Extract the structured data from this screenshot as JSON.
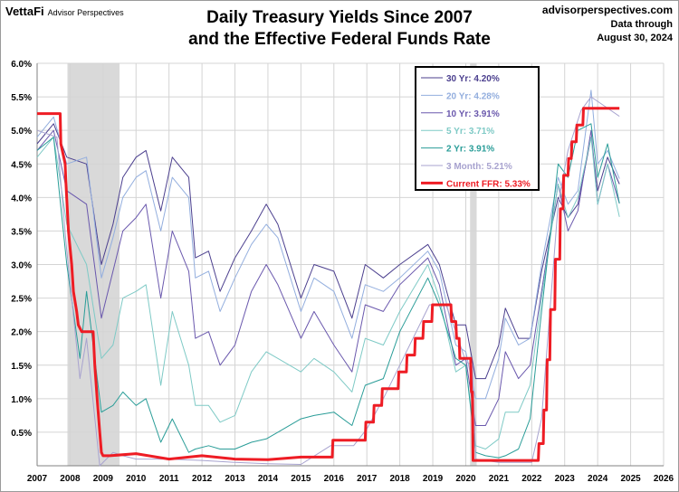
{
  "brand": {
    "logo": "VettaFi",
    "sub": "Advisor Perspectives"
  },
  "title_line1": "Daily Treasury Yields Since 2007",
  "title_line2": "and the Effective Federal Funds Rate",
  "source_line1": "advisorperspectives.com",
  "source_line2": "Data through",
  "source_line3": "August 30, 2024",
  "chart_data": {
    "type": "line",
    "xlim": [
      2007,
      2026
    ],
    "ylim": [
      0,
      6
    ],
    "x_ticks": [
      2007,
      2008,
      2009,
      2010,
      2011,
      2012,
      2013,
      2014,
      2015,
      2016,
      2017,
      2018,
      2019,
      2020,
      2021,
      2022,
      2023,
      2024,
      2025,
      2026
    ],
    "x_tick_labels": [
      "2007",
      "2008",
      "2009",
      "2010",
      "2011",
      "2012",
      "2013",
      "2014",
      "2015",
      "2016",
      "2017",
      "2018",
      "2019",
      "2020",
      "2021",
      "2022",
      "2023",
      "2024",
      "2025",
      "2026"
    ],
    "y_ticks": [
      0.5,
      1.0,
      1.5,
      2.0,
      2.5,
      3.0,
      3.5,
      4.0,
      4.5,
      5.0,
      5.5,
      6.0
    ],
    "y_tick_labels": [
      "0.5%",
      "1.0%",
      "1.5%",
      "2.0%",
      "2.5%",
      "3.0%",
      "3.5%",
      "4.0%",
      "4.5%",
      "5.0%",
      "5.5%",
      "6.0%"
    ],
    "grid": true,
    "legend_position": "top-right",
    "recessions": [
      [
        2007.92,
        2009.5
      ],
      [
        2020.13,
        2020.33
      ]
    ],
    "series": [
      {
        "name": "30 Yr: 4.20%",
        "color": "#4b3f8e",
        "width": 1,
        "x": [
          2007.0,
          2007.5,
          2007.9,
          2008.5,
          2008.95,
          2009.3,
          2009.6,
          2010.0,
          2010.3,
          2010.75,
          2011.1,
          2011.6,
          2011.8,
          2012.2,
          2012.55,
          2013.0,
          2013.5,
          2013.95,
          2014.3,
          2015.0,
          2015.4,
          2016.0,
          2016.55,
          2016.95,
          2017.5,
          2018.0,
          2018.85,
          2019.2,
          2019.7,
          2020.0,
          2020.3,
          2020.6,
          2021.0,
          2021.2,
          2021.6,
          2021.95,
          2022.3,
          2022.8,
          2023.1,
          2023.4,
          2023.8,
          2024.0,
          2024.3,
          2024.66
        ],
        "y": [
          4.8,
          5.1,
          4.6,
          4.5,
          3.0,
          3.6,
          4.3,
          4.6,
          4.7,
          3.8,
          4.6,
          4.3,
          3.1,
          3.2,
          2.6,
          3.1,
          3.5,
          3.9,
          3.6,
          2.5,
          3.0,
          2.9,
          2.2,
          3.0,
          2.8,
          3.0,
          3.3,
          3.0,
          2.1,
          2.1,
          1.3,
          1.3,
          1.8,
          2.35,
          1.9,
          1.9,
          2.9,
          4.0,
          3.7,
          3.9,
          4.9,
          4.1,
          4.6,
          4.2
        ]
      },
      {
        "name": "20 Yr: 4.28%",
        "color": "#93aede",
        "width": 1,
        "x": [
          2007.0,
          2007.5,
          2007.9,
          2008.5,
          2008.95,
          2009.3,
          2009.6,
          2010.0,
          2010.3,
          2010.75,
          2011.1,
          2011.6,
          2011.8,
          2012.2,
          2012.55,
          2013.0,
          2013.5,
          2013.95,
          2014.3,
          2015.0,
          2015.4,
          2016.0,
          2016.55,
          2016.95,
          2017.5,
          2018.0,
          2018.85,
          2019.2,
          2019.7,
          2020.0,
          2020.3,
          2020.6,
          2021.0,
          2021.2,
          2021.6,
          2021.95,
          2022.3,
          2022.8,
          2023.1,
          2023.4,
          2023.8,
          2024.0,
          2024.3,
          2024.66
        ],
        "y": [
          4.9,
          5.2,
          4.5,
          4.6,
          2.8,
          3.4,
          4.0,
          4.3,
          4.4,
          3.5,
          4.3,
          4.0,
          2.8,
          2.9,
          2.3,
          2.8,
          3.3,
          3.6,
          3.4,
          2.3,
          2.8,
          2.6,
          1.9,
          2.7,
          2.6,
          2.8,
          3.2,
          2.9,
          1.8,
          1.7,
          1.0,
          1.0,
          1.6,
          2.2,
          1.8,
          1.9,
          3.0,
          4.3,
          3.9,
          4.1,
          5.6,
          4.5,
          4.7,
          4.28
        ]
      },
      {
        "name": "10 Yr: 3.91%",
        "color": "#6a58ad",
        "width": 1,
        "x": [
          2007.0,
          2007.5,
          2007.9,
          2008.5,
          2008.95,
          2009.3,
          2009.6,
          2010.0,
          2010.3,
          2010.75,
          2011.1,
          2011.6,
          2011.8,
          2012.2,
          2012.55,
          2013.0,
          2013.5,
          2013.95,
          2014.3,
          2015.0,
          2015.4,
          2016.0,
          2016.55,
          2016.95,
          2017.5,
          2018.0,
          2018.85,
          2019.2,
          2019.7,
          2020.0,
          2020.3,
          2020.6,
          2021.0,
          2021.2,
          2021.6,
          2021.95,
          2022.3,
          2022.8,
          2023.1,
          2023.4,
          2023.8,
          2024.0,
          2024.3,
          2024.66
        ],
        "y": [
          4.7,
          5.0,
          4.1,
          3.9,
          2.2,
          2.9,
          3.5,
          3.7,
          3.9,
          2.5,
          3.5,
          2.9,
          1.9,
          2.0,
          1.5,
          1.8,
          2.6,
          3.0,
          2.7,
          1.9,
          2.3,
          1.8,
          1.4,
          2.4,
          2.3,
          2.7,
          3.1,
          2.7,
          1.5,
          1.6,
          0.6,
          0.6,
          1.0,
          1.7,
          1.3,
          1.5,
          2.6,
          4.2,
          3.5,
          3.8,
          5.0,
          3.9,
          4.5,
          3.91
        ]
      },
      {
        "name": "5 Yr: 3.71%",
        "color": "#7fcac6",
        "width": 1,
        "x": [
          2007.0,
          2007.5,
          2007.9,
          2008.5,
          2008.95,
          2009.3,
          2009.6,
          2010.0,
          2010.3,
          2010.75,
          2011.1,
          2011.6,
          2011.8,
          2012.2,
          2012.55,
          2013.0,
          2013.5,
          2013.95,
          2014.3,
          2015.0,
          2015.4,
          2016.0,
          2016.55,
          2016.95,
          2017.5,
          2018.0,
          2018.85,
          2019.2,
          2019.7,
          2020.0,
          2020.3,
          2020.6,
          2021.0,
          2021.2,
          2021.6,
          2021.95,
          2022.3,
          2022.8,
          2023.1,
          2023.4,
          2023.8,
          2024.0,
          2024.3,
          2024.66
        ],
        "y": [
          4.6,
          4.9,
          3.6,
          3.0,
          1.6,
          1.8,
          2.5,
          2.6,
          2.7,
          1.2,
          2.3,
          1.5,
          0.9,
          0.9,
          0.65,
          0.75,
          1.4,
          1.7,
          1.6,
          1.4,
          1.6,
          1.4,
          1.1,
          1.9,
          1.8,
          2.3,
          3.0,
          2.5,
          1.4,
          1.5,
          0.3,
          0.25,
          0.4,
          0.8,
          0.8,
          1.2,
          2.5,
          4.2,
          3.7,
          4.0,
          4.9,
          3.9,
          4.5,
          3.71
        ]
      },
      {
        "name": "2 Yr: 3.91%",
        "color": "#2a9d98",
        "width": 1,
        "x": [
          2007.0,
          2007.5,
          2007.9,
          2008.3,
          2008.5,
          2008.95,
          2009.3,
          2009.6,
          2010.0,
          2010.3,
          2010.75,
          2011.1,
          2011.6,
          2011.8,
          2012.2,
          2012.55,
          2013.0,
          2013.5,
          2013.95,
          2014.3,
          2015.0,
          2015.4,
          2016.0,
          2016.55,
          2016.95,
          2017.5,
          2018.0,
          2018.85,
          2019.2,
          2019.7,
          2020.0,
          2020.3,
          2020.6,
          2021.0,
          2021.2,
          2021.6,
          2021.95,
          2022.3,
          2022.8,
          2023.1,
          2023.4,
          2023.8,
          2024.0,
          2024.3,
          2024.66
        ],
        "y": [
          4.7,
          4.9,
          3.0,
          1.6,
          2.6,
          0.8,
          0.9,
          1.1,
          0.9,
          1.0,
          0.35,
          0.7,
          0.2,
          0.25,
          0.3,
          0.25,
          0.25,
          0.35,
          0.4,
          0.5,
          0.7,
          0.75,
          0.8,
          0.6,
          1.2,
          1.3,
          2.0,
          2.8,
          2.4,
          1.6,
          1.5,
          0.2,
          0.15,
          0.12,
          0.15,
          0.25,
          0.7,
          2.3,
          4.5,
          4.3,
          5.0,
          5.1,
          4.3,
          4.8,
          3.91
        ]
      },
      {
        "name": "3 Month: 5.21%",
        "color": "#a8a3cf",
        "width": 1,
        "x": [
          2007.0,
          2007.6,
          2007.9,
          2008.3,
          2008.5,
          2008.9,
          2009.3,
          2009.6,
          2010.0,
          2011.0,
          2012.0,
          2013.0,
          2014.0,
          2015.0,
          2015.9,
          2016.6,
          2017.0,
          2017.5,
          2018.0,
          2018.9,
          2019.4,
          2019.7,
          2020.0,
          2020.2,
          2020.3,
          2021.0,
          2022.0,
          2022.3,
          2022.8,
          2023.1,
          2023.5,
          2023.8,
          2024.66
        ],
        "y": [
          5.0,
          4.9,
          3.2,
          1.3,
          1.9,
          0.0,
          0.2,
          0.15,
          0.1,
          0.1,
          0.08,
          0.05,
          0.03,
          0.02,
          0.3,
          0.3,
          0.55,
          1.0,
          1.5,
          2.4,
          2.4,
          2.0,
          1.55,
          1.5,
          0.1,
          0.05,
          0.05,
          0.7,
          3.9,
          4.7,
          5.3,
          5.5,
          5.21
        ]
      },
      {
        "name": "Current FFR: 5.33%",
        "color": "#ee1c24",
        "width": 3,
        "x": [
          2007.0,
          2007.7,
          2007.72,
          2007.85,
          2007.87,
          2007.95,
          2008.05,
          2008.1,
          2008.2,
          2008.25,
          2008.35,
          2008.7,
          2008.75,
          2008.82,
          2008.9,
          2008.95,
          2009.0,
          2009.2,
          2010.0,
          2011.0,
          2012.0,
          2013.0,
          2014.0,
          2015.0,
          2015.95,
          2015.97,
          2016.95,
          2016.97,
          2017.2,
          2017.22,
          2017.45,
          2017.47,
          2017.95,
          2017.97,
          2018.2,
          2018.22,
          2018.45,
          2018.47,
          2018.7,
          2018.72,
          2018.97,
          2018.99,
          2019.55,
          2019.57,
          2019.7,
          2019.72,
          2019.8,
          2019.82,
          2020.15,
          2020.17,
          2020.2,
          2020.22,
          2022.2,
          2022.22,
          2022.35,
          2022.37,
          2022.45,
          2022.47,
          2022.55,
          2022.57,
          2022.7,
          2022.72,
          2022.85,
          2022.87,
          2022.95,
          2022.97,
          2023.1,
          2023.12,
          2023.2,
          2023.22,
          2023.35,
          2023.37,
          2023.55,
          2023.57,
          2024.66
        ],
        "y": [
          5.25,
          5.25,
          4.8,
          4.5,
          4.25,
          3.5,
          3.0,
          2.6,
          2.3,
          2.1,
          2.0,
          2.0,
          1.5,
          1.0,
          0.5,
          0.2,
          0.15,
          0.15,
          0.18,
          0.1,
          0.15,
          0.1,
          0.09,
          0.13,
          0.13,
          0.38,
          0.38,
          0.65,
          0.65,
          0.9,
          0.9,
          1.15,
          1.15,
          1.4,
          1.4,
          1.65,
          1.65,
          1.9,
          1.9,
          2.15,
          2.15,
          2.4,
          2.4,
          2.15,
          2.15,
          1.9,
          1.9,
          1.6,
          1.6,
          1.1,
          1.1,
          0.08,
          0.08,
          0.33,
          0.33,
          0.83,
          0.83,
          1.58,
          1.58,
          2.33,
          2.33,
          3.08,
          3.08,
          3.83,
          3.83,
          4.33,
          4.33,
          4.58,
          4.58,
          4.83,
          4.83,
          5.08,
          5.08,
          5.33,
          5.33
        ]
      }
    ]
  }
}
